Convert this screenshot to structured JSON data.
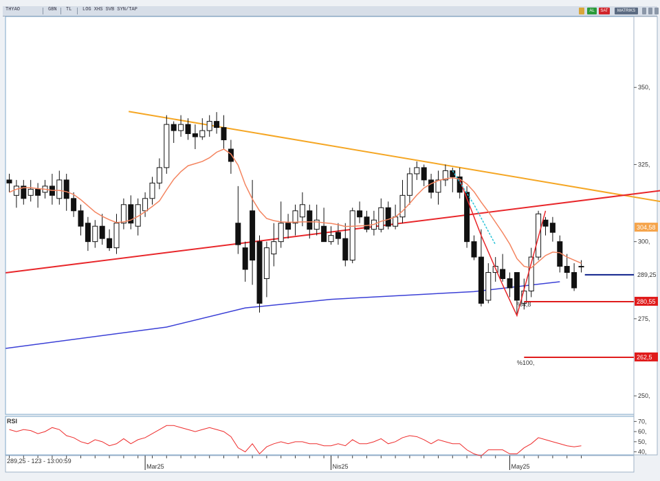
{
  "toolbar": {
    "symbol": "THYAO",
    "period": "GBN",
    "currency": "TL",
    "menu": "LOG XHS SVB SYN/TAP",
    "buy_label": "AL",
    "sell_label": "SAT",
    "matriks_label": "MATRIKS"
  },
  "status": {
    "readout": "289,25 - 123 - 13:00:59",
    "rsi_label": "RSI"
  },
  "colors": {
    "up_candle": "#ffffff",
    "down_candle": "#111111",
    "ma": "#f4845f",
    "trend_orange": "#f5a623",
    "trend_red": "#e8262a",
    "trend_blue": "#3a3fd6",
    "level_navy": "#0b1f8a",
    "level_red": "#e01b1b",
    "rsi_line": "#ee2b2b"
  },
  "chart_data": {
    "type": "candlestick",
    "ylim": [
      244,
      373
    ],
    "y_ticks": [
      {
        "value": 350,
        "label": "350,"
      },
      {
        "value": 325,
        "label": "325,"
      },
      {
        "value": 300,
        "label": "300,"
      },
      {
        "value": 275,
        "label": "275,"
      },
      {
        "value": 250,
        "label": "250,"
      }
    ],
    "x_labels": [
      {
        "index": 19,
        "label": "Mar25"
      },
      {
        "index": 45,
        "label": "Nis25"
      },
      {
        "index": 70,
        "label": "May25"
      }
    ],
    "candles": [
      [
        320,
        319,
        322,
        316
      ],
      [
        315,
        318,
        320,
        311
      ],
      [
        318,
        314,
        320,
        312
      ],
      [
        315,
        317,
        320,
        313
      ],
      [
        317,
        315,
        319,
        311
      ],
      [
        316,
        318,
        320,
        314
      ],
      [
        318,
        315,
        322,
        312
      ],
      [
        314,
        320,
        323,
        312
      ],
      [
        320,
        314,
        322,
        310
      ],
      [
        314,
        310,
        316,
        308
      ],
      [
        310,
        305,
        312,
        302
      ],
      [
        306,
        300,
        308,
        297
      ],
      [
        300,
        305,
        307,
        298
      ],
      [
        305,
        301,
        309,
        299
      ],
      [
        301,
        298,
        304,
        297
      ],
      [
        298,
        306,
        309,
        296
      ],
      [
        306,
        312,
        314,
        304
      ],
      [
        312,
        306,
        315,
        304
      ],
      [
        305,
        312,
        314,
        302
      ],
      [
        310,
        314,
        316,
        308
      ],
      [
        314,
        319,
        321,
        312
      ],
      [
        319,
        324,
        327,
        317
      ],
      [
        324,
        338,
        341,
        322
      ],
      [
        338,
        336,
        339,
        332
      ],
      [
        336,
        338,
        341,
        334
      ],
      [
        338,
        335,
        340,
        333
      ],
      [
        335,
        334,
        338,
        330
      ],
      [
        334,
        336,
        340,
        333
      ],
      [
        336,
        339,
        341,
        334
      ],
      [
        339,
        337,
        342,
        335
      ],
      [
        337,
        333,
        341,
        330
      ],
      [
        330,
        326,
        333,
        322
      ],
      [
        306,
        299,
        318,
        296
      ],
      [
        298,
        291,
        300,
        287
      ],
      [
        310,
        294,
        320,
        286
      ],
      [
        300,
        280,
        302,
        277
      ],
      [
        288,
        298,
        300,
        282
      ],
      [
        296,
        300,
        306,
        292
      ],
      [
        300,
        306,
        313,
        298
      ],
      [
        306,
        304,
        309,
        301
      ],
      [
        306,
        310,
        312,
        302
      ],
      [
        308,
        312,
        316,
        305
      ],
      [
        310,
        304,
        312,
        301
      ],
      [
        304,
        307,
        312,
        302
      ],
      [
        305,
        300,
        311,
        300
      ],
      [
        300,
        302,
        305,
        299
      ],
      [
        303,
        301,
        306,
        299
      ],
      [
        301,
        294,
        306,
        292
      ],
      [
        294,
        310,
        311,
        293
      ],
      [
        310,
        308,
        313,
        306
      ],
      [
        308,
        304,
        310,
        303
      ],
      [
        304,
        307,
        310,
        302
      ],
      [
        304,
        311,
        314,
        303
      ],
      [
        311,
        305,
        313,
        304
      ],
      [
        305,
        308,
        312,
        304
      ],
      [
        308,
        315,
        320,
        306
      ],
      [
        315,
        322,
        324,
        312
      ],
      [
        322,
        324,
        326,
        320
      ],
      [
        324,
        320,
        325,
        318
      ],
      [
        320,
        316,
        322,
        314
      ],
      [
        316,
        320,
        323,
        312
      ],
      [
        320,
        323,
        325,
        318
      ],
      [
        323,
        321,
        324,
        316
      ],
      [
        321,
        316,
        324,
        314
      ],
      [
        316,
        300,
        318,
        298
      ],
      [
        300,
        295,
        302,
        294
      ],
      [
        295,
        280,
        304,
        279
      ],
      [
        281,
        290,
        293,
        280
      ],
      [
        290,
        292,
        295,
        287
      ],
      [
        291,
        288,
        296,
        287
      ],
      [
        288,
        285,
        290,
        282
      ],
      [
        290,
        281,
        290,
        276
      ],
      [
        280,
        284,
        288,
        278
      ],
      [
        284,
        295,
        298,
        282
      ],
      [
        295,
        309,
        310,
        294
      ],
      [
        307,
        305,
        308,
        302
      ],
      [
        306,
        303,
        308,
        300
      ],
      [
        300,
        292,
        302,
        290
      ],
      [
        292,
        290,
        296,
        288
      ],
      [
        290,
        285,
        293,
        284
      ],
      [
        292,
        292,
        294,
        290
      ]
    ],
    "moving_average": [
      316.0,
      317.0,
      317.5,
      317.5,
      317.2,
      317.0,
      316.6,
      316.6,
      316.2,
      315.3,
      313.6,
      311.6,
      309.6,
      308.2,
      307.1,
      306.2,
      306.4,
      307.0,
      308.2,
      309.7,
      311.4,
      313.2,
      316.8,
      320.2,
      322.7,
      324.6,
      325.3,
      326.0,
      327.2,
      329.0,
      330.0,
      328.4,
      324.8,
      318.5,
      313.8,
      310.0,
      307.5,
      306.8,
      306.4,
      306.3,
      306.3,
      306.4,
      306.4,
      306.4,
      306.1,
      305.9,
      305.5,
      304.9,
      305.0,
      305.1,
      305.2,
      305.6,
      306.6,
      307.2,
      308.0,
      309.9,
      312.4,
      315.1,
      317.4,
      318.8,
      319.8,
      320.4,
      320.7,
      320.3,
      318.7,
      316.2,
      312.8,
      309.7,
      306.3,
      302.9,
      299.2,
      294.5,
      292.0,
      291.5,
      293.5,
      295.5,
      296.6,
      296.4,
      295.0,
      294.0,
      293.0
    ],
    "trendlines": [
      {
        "color_key": "trend_orange",
        "from": [
          16.7,
          342.2
        ],
        "to": [
          94.4,
          311.7
        ]
      },
      {
        "color_key": "trend_red",
        "from": [
          -0.5,
          289.9
        ],
        "to": [
          94.4,
          317.5
        ]
      },
      {
        "color_key": "trend_blue",
        "from": [
          -0.5,
          265.4
        ],
        "to": [
          53,
          283.8
        ],
        "via": [
          [
            22,
            272.3
          ],
          [
            33,
            278.5
          ],
          [
            45,
            281.3
          ],
          [
            65,
            283.8
          ],
          [
            77,
            287.0
          ]
        ]
      }
    ],
    "zigzag_cyan": [
      [
        62,
        323
      ],
      [
        65,
        312
      ],
      [
        68,
        299
      ]
    ],
    "zigzag_red": [
      [
        63,
        320
      ],
      [
        66,
        302
      ],
      [
        69,
        286
      ],
      [
        71,
        276
      ],
      [
        75,
        310
      ]
    ],
    "levels": [
      {
        "value": 304.58,
        "label": "304,58",
        "tag_color": "#f5a44b",
        "line_color_key": "",
        "start_index": 95
      },
      {
        "value": 289.25,
        "label": "289,25",
        "tag_color": "",
        "line_color_key": "level_navy",
        "start_index": 80.5
      },
      {
        "value": 280.55,
        "label": "280,55",
        "tag_color": "#e01b1b",
        "line_color_key": "level_red",
        "start_index": 72
      },
      {
        "value": 262.5,
        "label": "262,5",
        "tag_color": "#e01b1b",
        "line_color_key": "level_red",
        "start_index": 72
      }
    ],
    "fib_labels": [
      {
        "index": 71,
        "value": 279,
        "label": "%4,8"
      },
      {
        "index": 71,
        "value": 260,
        "label": "%100,"
      }
    ],
    "rsi": {
      "ylim": [
        37,
        75
      ],
      "ticks": [
        {
          "value": 70,
          "label": "70,"
        },
        {
          "value": 60,
          "label": "60,"
        },
        {
          "value": 50,
          "label": "50,"
        },
        {
          "value": 40,
          "label": "40,"
        }
      ],
      "values": [
        62,
        60,
        62,
        61,
        58,
        60,
        64,
        62,
        56,
        54,
        50,
        48,
        52,
        50,
        46,
        48,
        53,
        48,
        52,
        54,
        58,
        62,
        66,
        66,
        64,
        62,
        60,
        62,
        64,
        62,
        60,
        55,
        44,
        40,
        48,
        38,
        45,
        48,
        50,
        48,
        50,
        50,
        48,
        48,
        46,
        46,
        48,
        46,
        52,
        48,
        48,
        50,
        53,
        48,
        50,
        54,
        56,
        55,
        52,
        48,
        52,
        50,
        48,
        48,
        42,
        38,
        36,
        42,
        42,
        42,
        38,
        38,
        44,
        48,
        54,
        52,
        50,
        48,
        46,
        45,
        46
      ]
    }
  }
}
